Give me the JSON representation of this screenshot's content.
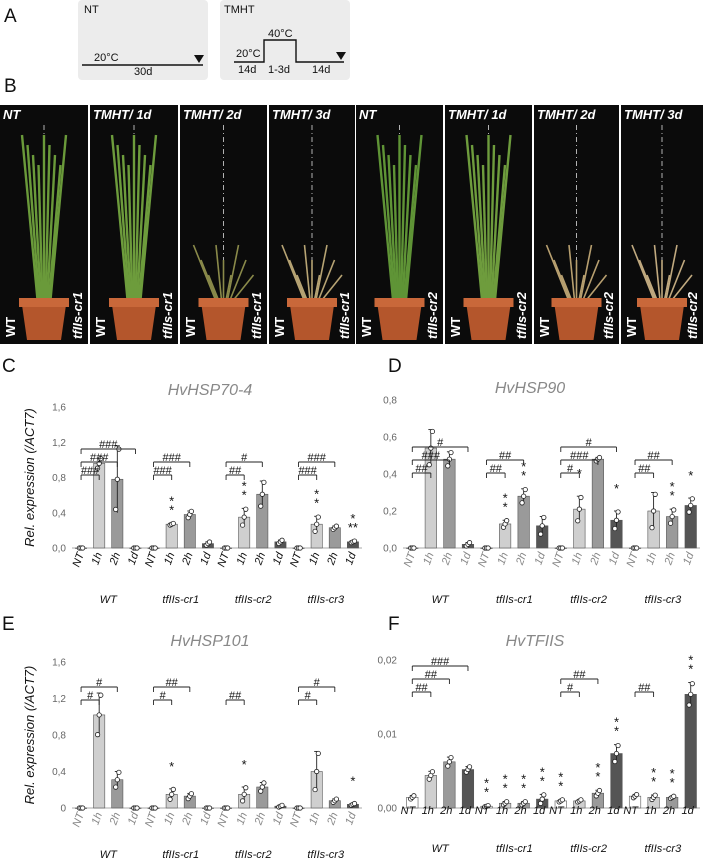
{
  "panelA": {
    "letter": "A",
    "nt": {
      "title": "NT",
      "temp": "20°C",
      "duration": "30d"
    },
    "tmht": {
      "title": "TMHT",
      "temp_low": "20°C",
      "temp_high": "40°C",
      "d1": "14d",
      "d2": "1-3d",
      "d3": "14d"
    }
  },
  "panelB": {
    "letter": "B",
    "photos": [
      {
        "label": "NT",
        "mutant": "tfIIs-cr1",
        "wt": "WT"
      },
      {
        "label": "TMHT/ 1d",
        "mutant": "tfIIs-cr1",
        "wt": "WT"
      },
      {
        "label": "TMHT/ 2d",
        "mutant": "tfIIs-cr1",
        "wt": "WT"
      },
      {
        "label": "TMHT/ 3d",
        "mutant": "tfIIs-cr1",
        "wt": "WT"
      },
      {
        "label": "NT",
        "mutant": "tfIIs-cr2",
        "wt": "WT"
      },
      {
        "label": "TMHT/ 1d",
        "mutant": "tfIIs-cr2",
        "wt": "WT"
      },
      {
        "label": "TMHT/ 2d",
        "mutant": "tfIIs-cr2",
        "wt": "WT"
      },
      {
        "label": "TMHT/ 3d",
        "mutant": "tfIIs-cr2",
        "wt": "WT"
      }
    ]
  },
  "ylabel": "Rel. expression (/ACT7)",
  "chart_data": [
    {
      "letter": "C",
      "type": "bar",
      "title": "HvHSP70-4",
      "ylim": [
        0,
        1.6
      ],
      "yticks": [
        "0,0",
        "0,4",
        "0,8",
        "1,2",
        "1,6"
      ],
      "groups": [
        "WT",
        "tfIIs-cr1",
        "tfIIs-cr2",
        "tfIIs-cr3"
      ],
      "categories": [
        "NT",
        "1h",
        "2h",
        "1d"
      ],
      "values": [
        [
          0.0,
          0.96,
          0.78,
          0.0
        ],
        [
          0.0,
          0.27,
          0.38,
          0.05
        ],
        [
          0.0,
          0.35,
          0.61,
          0.07
        ],
        [
          0.0,
          0.27,
          0.23,
          0.07
        ]
      ],
      "errors": [
        [
          0,
          0.06,
          0.38,
          0
        ],
        [
          0,
          0.01,
          0.04,
          0.02
        ],
        [
          0,
          0.1,
          0.15,
          0.02
        ],
        [
          0,
          0.09,
          0.02,
          0.01
        ]
      ],
      "stars": [
        [
          "",
          "",
          "",
          ""
        ],
        [
          "",
          "**",
          "",
          ""
        ],
        [
          "",
          "**",
          "",
          ""
        ],
        [
          "",
          "**",
          "",
          "***"
        ]
      ],
      "hash_levels": [
        [
          "###",
          "###",
          "###"
        ],
        [
          "###",
          "###",
          ""
        ],
        [
          "##",
          "#",
          ""
        ],
        [
          "###",
          "###",
          ""
        ]
      ]
    },
    {
      "letter": "D",
      "type": "bar",
      "title": "HvHSP90",
      "ylim": [
        0,
        0.8
      ],
      "yticks": [
        "0,0",
        "0,2",
        "0,4",
        "0,6",
        "0,8"
      ],
      "groups": [
        "WT",
        "tfIIs-cr1",
        "tfIIs-cr2",
        "tfIIs-cr3"
      ],
      "categories": [
        "NT",
        "1h",
        "2h",
        "1d"
      ],
      "values": [
        [
          0.0,
          0.54,
          0.48,
          0.02
        ],
        [
          0.0,
          0.13,
          0.28,
          0.12
        ],
        [
          0.0,
          0.21,
          0.48,
          0.15
        ],
        [
          0.0,
          0.2,
          0.17,
          0.23
        ]
      ],
      "errors": [
        [
          0,
          0.1,
          0.04,
          0.01
        ],
        [
          0,
          0.02,
          0.04,
          0.05
        ],
        [
          0,
          0.07,
          0.01,
          0.05
        ],
        [
          0,
          0.1,
          0.04,
          0.04
        ]
      ],
      "stars": [
        [
          "",
          "",
          "",
          ""
        ],
        [
          "",
          "**",
          "**",
          ""
        ],
        [
          "",
          "*",
          "",
          "*"
        ],
        [
          "",
          "",
          "**",
          "*"
        ]
      ],
      "hash_levels": [
        [
          "##",
          "###",
          "#"
        ],
        [
          "##",
          "##",
          ""
        ],
        [
          "#",
          "###",
          "#"
        ],
        [
          "##",
          "##",
          ""
        ]
      ]
    },
    {
      "letter": "E",
      "type": "bar",
      "title": "HvHSP101",
      "ylim": [
        0,
        1.6
      ],
      "yticks": [
        "0",
        "0,4",
        "0,8",
        "1,2",
        "1,6"
      ],
      "groups": [
        "WT",
        "tfIIs-cr1",
        "tfIIs-cr2",
        "tfIIs-cr3"
      ],
      "categories": [
        "NT",
        "1h",
        "2h",
        "1d"
      ],
      "values": [
        [
          0.0,
          1.02,
          0.31,
          0.0
        ],
        [
          0.0,
          0.15,
          0.13,
          0.0
        ],
        [
          0.0,
          0.15,
          0.23,
          0.02
        ],
        [
          0.0,
          0.4,
          0.08,
          0.04
        ]
      ],
      "errors": [
        [
          0,
          0.24,
          0.09,
          0
        ],
        [
          0,
          0.06,
          0.03,
          0
        ],
        [
          0,
          0.08,
          0.05,
          0.01
        ],
        [
          0,
          0.22,
          0.02,
          0.01
        ]
      ],
      "stars": [
        [
          "",
          "",
          "",
          ""
        ],
        [
          "",
          "*",
          "",
          ""
        ],
        [
          "",
          "*",
          "",
          ""
        ],
        [
          "",
          "",
          "",
          "*"
        ]
      ],
      "hash_levels": [
        [
          "#",
          "#",
          ""
        ],
        [
          "#",
          "##",
          ""
        ],
        [
          "##",
          "",
          ""
        ],
        [
          "#",
          "#",
          ""
        ]
      ]
    },
    {
      "letter": "F",
      "type": "bar",
      "title": "HvTFIIS",
      "ylim": [
        0,
        0.025
      ],
      "yticks": [
        "0,00",
        "0,01",
        "0,02"
      ],
      "groups": [
        "WT",
        "tfIIs-cr1",
        "tfIIs-cr2",
        "tfIIs-cr3"
      ],
      "categories": [
        "NT",
        "1h",
        "2h",
        "1d"
      ],
      "values": [
        [
          0.0018,
          0.0055,
          0.0078,
          0.0065
        ],
        [
          0.0003,
          0.0008,
          0.0008,
          0.0015
        ],
        [
          0.0012,
          0.0012,
          0.0025,
          0.0092
        ],
        [
          0.002,
          0.0018,
          0.0018,
          0.0192
        ]
      ],
      "errors": [
        [
          0.0003,
          0.0007,
          0.0008,
          0.0005
        ],
        [
          0.0001,
          0.0003,
          0.0003,
          0.0008
        ],
        [
          0.0002,
          0.0002,
          0.0005,
          0.0015
        ],
        [
          0.0003,
          0.0004,
          0.0002,
          0.002
        ]
      ],
      "stars": [
        [
          "",
          "",
          "",
          ""
        ],
        [
          "**",
          "**",
          "**",
          "**"
        ],
        [
          "**",
          "",
          "**",
          "**"
        ],
        [
          "",
          "**",
          "**",
          "**"
        ]
      ],
      "hash_levels": [
        [
          "##",
          "##",
          "###"
        ],
        [
          "",
          "",
          ""
        ],
        [
          "#",
          "##",
          ""
        ],
        [
          "##",
          "",
          ""
        ]
      ]
    }
  ]
}
